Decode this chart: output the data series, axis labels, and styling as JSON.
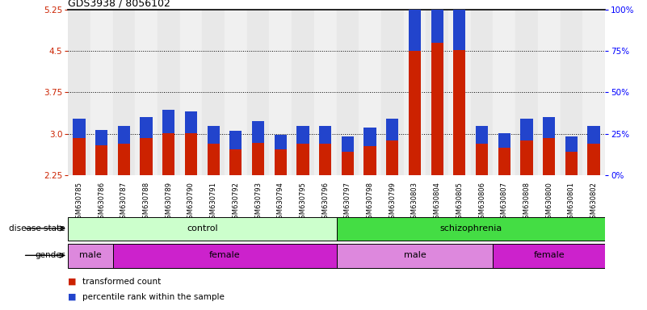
{
  "title": "GDS3938 / 8056102",
  "samples": [
    "GSM630785",
    "GSM630786",
    "GSM630787",
    "GSM630788",
    "GSM630789",
    "GSM630790",
    "GSM630791",
    "GSM630792",
    "GSM630793",
    "GSM630794",
    "GSM630795",
    "GSM630796",
    "GSM630797",
    "GSM630798",
    "GSM630799",
    "GSM630803",
    "GSM630804",
    "GSM630805",
    "GSM630806",
    "GSM630807",
    "GSM630808",
    "GSM630800",
    "GSM630801",
    "GSM630802"
  ],
  "red_vals": [
    2.92,
    2.8,
    2.82,
    2.92,
    3.02,
    3.02,
    2.82,
    2.72,
    2.84,
    2.72,
    2.82,
    2.82,
    2.68,
    2.78,
    2.88,
    4.5,
    4.65,
    4.52,
    2.82,
    2.75,
    2.88,
    2.92,
    2.68,
    2.82
  ],
  "blue_pct": [
    12,
    9,
    11,
    13,
    14,
    13,
    11,
    11,
    13,
    9,
    11,
    11,
    9,
    11,
    13,
    27,
    30,
    28,
    11,
    9,
    13,
    13,
    9,
    11
  ],
  "ylim_left": [
    2.25,
    5.25
  ],
  "ylim_right": [
    0,
    100
  ],
  "yticks_left": [
    2.25,
    3.0,
    3.75,
    4.5,
    5.25
  ],
  "yticks_right": [
    0,
    25,
    50,
    75,
    100
  ],
  "ytick_labels_right": [
    "0%",
    "25%",
    "50%",
    "75%",
    "100%"
  ],
  "red_color": "#cc2200",
  "blue_color": "#2244cc",
  "control_color_light": "#ccffcc",
  "control_color": "#ccffcc",
  "schizo_color": "#44dd44",
  "male_color": "#ee66ee",
  "female_color": "#cc22cc",
  "legend_red_label": "transformed count",
  "legend_blue_label": "percentile rank within the sample",
  "disease_label": "disease state",
  "gender_label": "gender",
  "control_range": [
    0,
    12
  ],
  "schizo_range": [
    12,
    24
  ],
  "gender_regions": [
    {
      "start": 0,
      "end": 2,
      "label": "male",
      "color": "#dd88dd"
    },
    {
      "start": 2,
      "end": 12,
      "label": "female",
      "color": "#cc22cc"
    },
    {
      "start": 12,
      "end": 19,
      "label": "male",
      "color": "#dd88dd"
    },
    {
      "start": 19,
      "end": 24,
      "label": "female",
      "color": "#cc22cc"
    }
  ],
  "grid_yticks": [
    3.0,
    3.75,
    4.5
  ]
}
